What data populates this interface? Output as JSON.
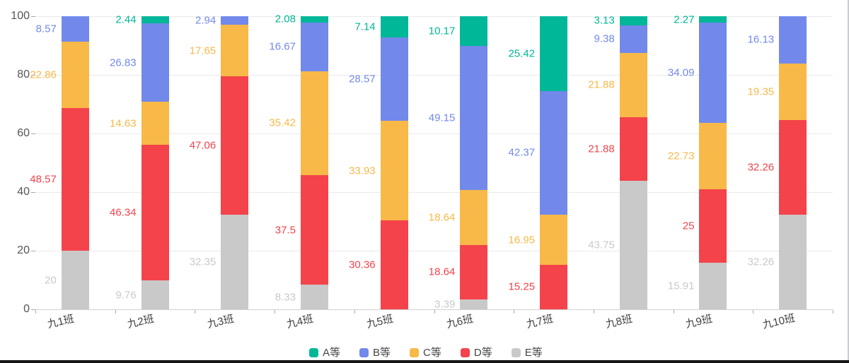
{
  "chart_data": {
    "type": "bar",
    "stacked": true,
    "title": "",
    "xlabel": "",
    "ylabel": "",
    "categories": [
      "九1班",
      "九2班",
      "九3班",
      "九4班",
      "九5班",
      "九6班",
      "九7班",
      "九8班",
      "九9班",
      "九10班"
    ],
    "series": [
      {
        "name": "A等",
        "color": "#00b798",
        "values": [
          0,
          2.44,
          0,
          2.08,
          7.14,
          10.17,
          25.42,
          3.13,
          2.27,
          0
        ]
      },
      {
        "name": "B等",
        "color": "#7289eb",
        "values": [
          8.57,
          26.83,
          2.94,
          16.67,
          28.57,
          49.15,
          42.37,
          9.38,
          34.09,
          16.13
        ]
      },
      {
        "name": "C等",
        "color": "#f8b948",
        "values": [
          22.86,
          14.63,
          17.65,
          35.42,
          33.93,
          18.64,
          16.95,
          21.88,
          22.73,
          19.35
        ]
      },
      {
        "name": "D等",
        "color": "#f4434b",
        "values": [
          48.57,
          46.34,
          47.06,
          37.5,
          30.36,
          18.64,
          15.25,
          21.88,
          25,
          32.26
        ]
      },
      {
        "name": "E等",
        "color": "#c9c9c9",
        "values": [
          20,
          9.76,
          32.35,
          8.33,
          0,
          3.39,
          0,
          43.75,
          15.91,
          32.26
        ]
      }
    ],
    "stack_order_bottom_to_top": [
      "E等",
      "D等",
      "C等",
      "B等",
      "A等"
    ],
    "ylim": [
      0,
      100
    ],
    "y_ticks": [
      0,
      20,
      40,
      60,
      80,
      100
    ],
    "grid": true,
    "value_labels_position": "left-of-segment",
    "legend": {
      "position": "bottom",
      "items": [
        "A等",
        "B等",
        "C等",
        "D等",
        "E等"
      ]
    }
  }
}
